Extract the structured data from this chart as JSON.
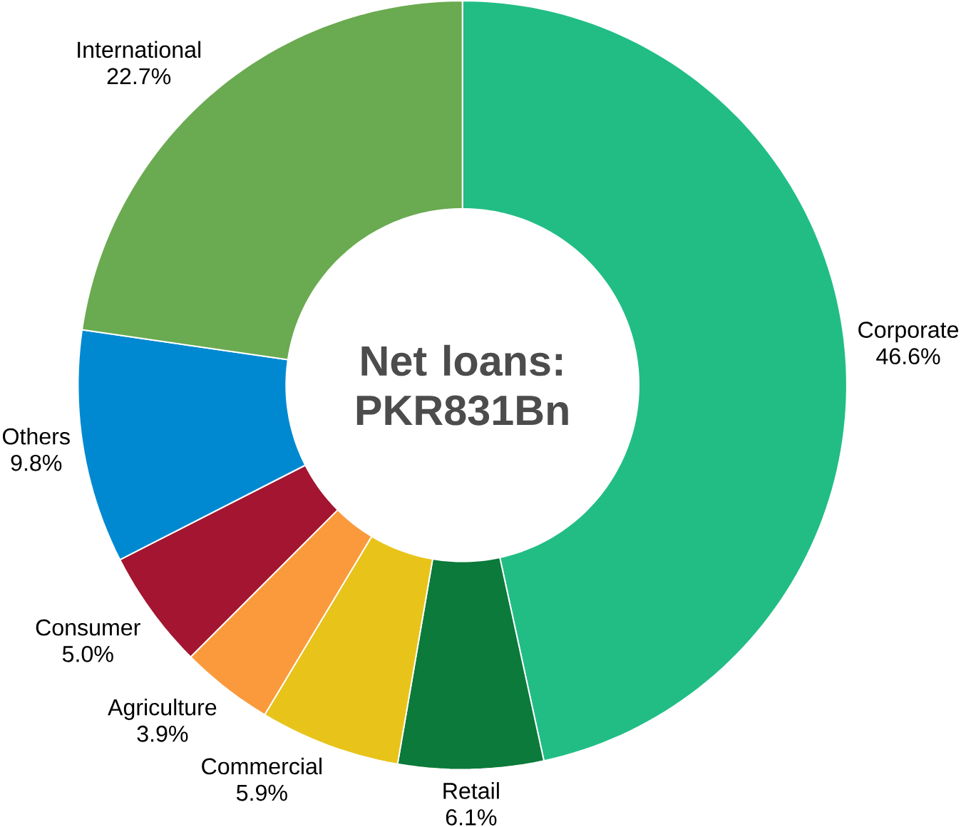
{
  "chart_data": {
    "type": "donut",
    "title": "Net loans: PKR831Bn",
    "categories": [
      "Corporate",
      "Retail",
      "Commercial",
      "Agriculture",
      "Consumer",
      "Others",
      "International"
    ],
    "values": [
      46.6,
      6.1,
      5.9,
      3.9,
      5.0,
      9.8,
      22.7
    ],
    "value_labels": [
      "46.6%",
      "6.1%",
      "5.9%",
      "3.9%",
      "5.0%",
      "9.8%",
      "22.7%"
    ],
    "colors": [
      "#21bd85",
      "#0b7a3a",
      "#e8c31a",
      "#fb9a3c",
      "#a31530",
      "#0089d1",
      "#6aaa50"
    ]
  }
}
